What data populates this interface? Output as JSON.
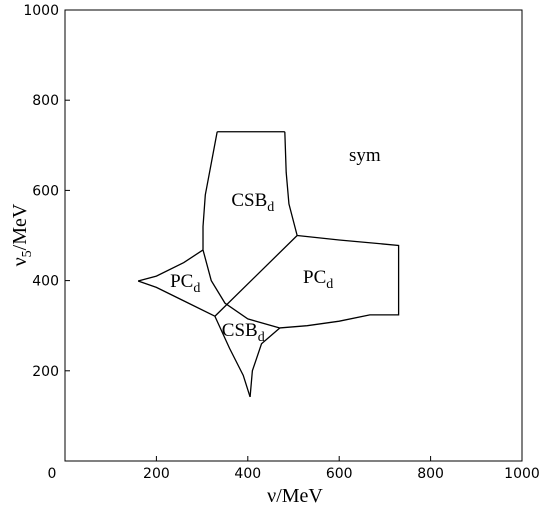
{
  "chart_data": {
    "type": "line",
    "x_label": {
      "symbol": "ν",
      "unit": "/MeV"
    },
    "y_label": {
      "symbol": "ν",
      "subscript": "5",
      "unit": "/MeV"
    },
    "xlim": [
      0,
      1000
    ],
    "ylim": [
      0,
      1000
    ],
    "xticks": [
      0,
      200,
      400,
      600,
      800,
      1000
    ],
    "yticks": [
      200,
      400,
      600,
      800,
      1000
    ],
    "color": "#000000",
    "curves": [
      {
        "x": [
          333,
          320,
          307,
          302,
          302
        ],
        "y": [
          730,
          660,
          590,
          520,
          468
        ]
      },
      {
        "x": [
          333,
          481
        ],
        "y": [
          730,
          730
        ]
      },
      {
        "x": [
          481,
          484,
          490,
          508
        ],
        "y": [
          730,
          640,
          570,
          500
        ]
      },
      {
        "x": [
          508,
          328
        ],
        "y": [
          500,
          321
        ]
      },
      {
        "x": [
          302,
          320,
          350,
          400,
          470
        ],
        "y": [
          468,
          400,
          350,
          315,
          295
        ]
      },
      {
        "x": [
          508,
          600,
          730,
          730,
          667,
          600,
          530,
          470
        ],
        "y": [
          500,
          490,
          478,
          324,
          324,
          310,
          300,
          295
        ]
      },
      {
        "x": [
          160,
          200,
          260,
          302
        ],
        "y": [
          399,
          410,
          440,
          468
        ]
      },
      {
        "x": [
          160,
          200,
          260,
          328
        ],
        "y": [
          399,
          385,
          355,
          321
        ]
      },
      {
        "x": [
          328,
          360,
          390,
          405
        ],
        "y": [
          321,
          250,
          190,
          142
        ]
      },
      {
        "x": [
          405,
          410,
          430,
          470
        ],
        "y": [
          142,
          200,
          260,
          295
        ]
      }
    ],
    "annotations": [
      {
        "text": "sym",
        "x": 656,
        "y": 678
      },
      {
        "text": "CSB",
        "subscript": "d",
        "x": 411,
        "y": 579
      },
      {
        "text": "PC",
        "subscript": "d",
        "x": 554,
        "y": 408
      },
      {
        "text": "PC",
        "subscript": "d",
        "x": 263,
        "y": 399
      },
      {
        "text": "CSB",
        "subscript": "d",
        "x": 390,
        "y": 290
      }
    ]
  }
}
